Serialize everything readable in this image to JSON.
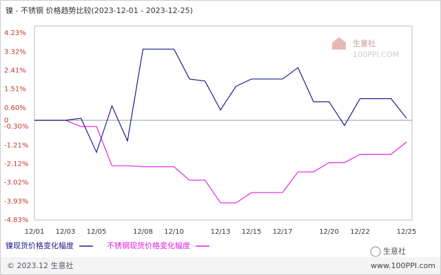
{
  "chart_data": {
    "type": "line",
    "title": "镍 - 不锈钢 价格趋势比较(2023-12-01 - 2023-12-25)",
    "categories": [
      "12/01",
      null,
      "12/03",
      null,
      "12/05",
      null,
      null,
      "12/08",
      null,
      "12/10",
      null,
      null,
      "12/13",
      null,
      "12/15",
      null,
      "12/17",
      null,
      null,
      "12/20",
      null,
      "12/22",
      null,
      null,
      "12/25"
    ],
    "series": [
      {
        "name": "镍现货价格变化幅度",
        "color": "#1a1a8c",
        "values": [
          0,
          0,
          0,
          0.1,
          -1.55,
          0.7,
          -1.0,
          3.45,
          3.45,
          3.45,
          2.0,
          1.9,
          0.5,
          1.65,
          2.0,
          2.0,
          2.0,
          2.55,
          0.9,
          0.9,
          -0.25,
          1.05,
          1.05,
          1.05,
          0.1
        ]
      },
      {
        "name": "不锈钢现货价格变化幅度",
        "color": "#e020e0",
        "values": [
          0,
          0,
          0,
          -0.3,
          -0.3,
          -2.2,
          -2.2,
          -2.25,
          -2.25,
          -2.25,
          -2.9,
          -2.9,
          -4.0,
          -4.0,
          -3.5,
          -3.5,
          -3.5,
          -2.5,
          -2.5,
          -2.05,
          -2.05,
          -1.65,
          -1.65,
          -1.65,
          -1.05
        ]
      }
    ],
    "ylim": [
      -4.83,
      4.23
    ],
    "yticks": [
      {
        "value": 4.23,
        "label": "4.23%"
      },
      {
        "value": 3.32,
        "label": "3.32%"
      },
      {
        "value": 2.41,
        "label": "2.41%"
      },
      {
        "value": 1.51,
        "label": "1.51%"
      },
      {
        "value": 0.6,
        "label": "0.60%"
      },
      0,
      {
        "value": -0.3,
        "label": "-0.30%"
      },
      {
        "value": -1.21,
        "label": "-1.21%"
      },
      {
        "value": -2.12,
        "label": "-2.12%"
      },
      {
        "value": -3.02,
        "label": "-3.02%"
      },
      {
        "value": -3.93,
        "label": "-3.93%"
      },
      {
        "value": -4.83,
        "label": "-4.83%"
      }
    ],
    "grid": false,
    "watermark": [
      "生意社",
      "100PPI.COM"
    ],
    "footer": [
      "© 2023.12 生意社",
      "生意社",
      "www.100PPI.com"
    ]
  }
}
